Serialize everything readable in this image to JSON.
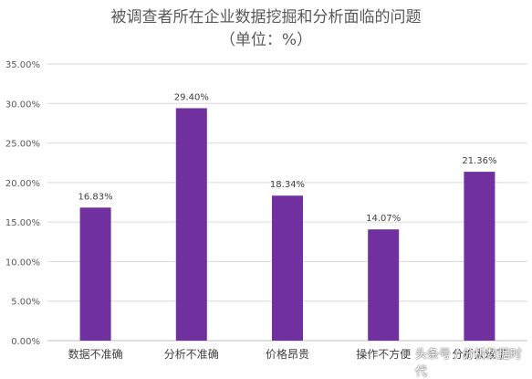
{
  "title_line1": "被调查者所在企业数据挖掘和分析面临的问题",
  "title_line2": "（单位：%）",
  "watermark": "头条号 / 分析数据时代",
  "chart_data": {
    "type": "bar",
    "categories": [
      "数据不准确",
      "分析不准确",
      "价格昂贵",
      "操作不方便",
      "分析太难了"
    ],
    "values": [
      16.83,
      29.4,
      18.34,
      14.07,
      21.36
    ],
    "value_labels": [
      "16.83%",
      "29.40%",
      "18.34%",
      "14.07%",
      "21.36%"
    ],
    "ylim": [
      0,
      35
    ],
    "yticks": [
      0,
      5,
      10,
      15,
      20,
      25,
      30,
      35
    ],
    "ytick_labels": [
      "0.00%",
      "5.00%",
      "10.00%",
      "15.00%",
      "20.00%",
      "25.00%",
      "30.00%",
      "35.00%"
    ],
    "grid": true,
    "bar_color": "#7030a0"
  }
}
